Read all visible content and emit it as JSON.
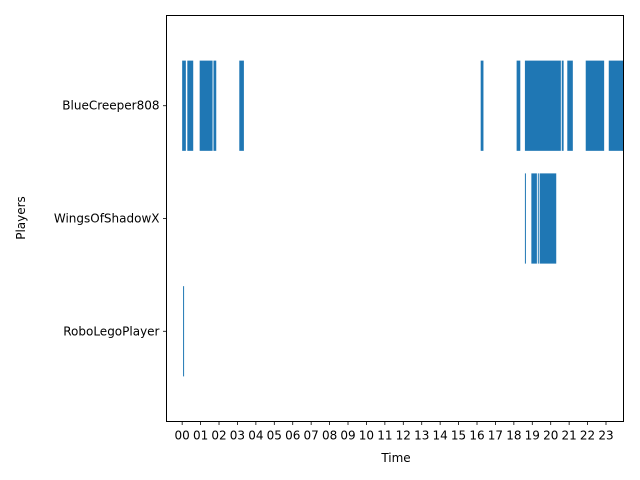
{
  "chart_data": {
    "type": "bar",
    "orientation": "horizontal",
    "xlabel": "Time",
    "ylabel": "Players",
    "x_ticks": [
      "00",
      "01",
      "02",
      "03",
      "04",
      "05",
      "06",
      "07",
      "08",
      "09",
      "10",
      "11",
      "12",
      "13",
      "14",
      "15",
      "16",
      "17",
      "18",
      "19",
      "20",
      "21",
      "22",
      "23"
    ],
    "xlim": [
      -0.85,
      23.95
    ],
    "grid": false,
    "color": "#1f77b4",
    "series": [
      {
        "name": "BlueCreeper808",
        "intervals": [
          [
            0.0,
            0.2
          ],
          [
            0.28,
            0.6
          ],
          [
            0.95,
            1.65
          ],
          [
            1.7,
            1.85
          ],
          [
            3.1,
            3.35
          ],
          [
            16.2,
            16.35
          ],
          [
            18.15,
            18.35
          ],
          [
            18.6,
            20.55
          ],
          [
            20.6,
            20.7
          ],
          [
            20.9,
            21.2
          ],
          [
            21.9,
            22.9
          ],
          [
            23.15,
            23.95
          ]
        ]
      },
      {
        "name": "WingsOfShadowX",
        "intervals": [
          [
            18.6,
            18.65
          ],
          [
            18.95,
            19.25
          ],
          [
            19.3,
            19.35
          ],
          [
            19.4,
            20.3
          ]
        ]
      },
      {
        "name": "RoboLegoPlayer",
        "intervals": [
          [
            0.05,
            0.1
          ]
        ]
      }
    ]
  }
}
